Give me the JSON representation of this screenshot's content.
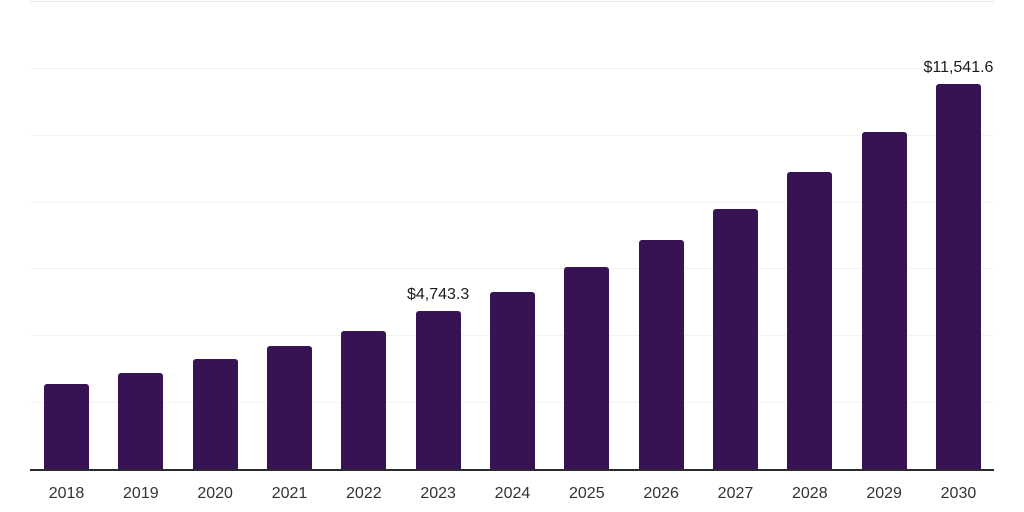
{
  "chart_data": {
    "type": "bar",
    "title": "",
    "xlabel": "",
    "ylabel": "",
    "categories": [
      "2018",
      "2019",
      "2020",
      "2021",
      "2022",
      "2023",
      "2024",
      "2025",
      "2026",
      "2027",
      "2028",
      "2029",
      "2030"
    ],
    "values": [
      2580,
      2900,
      3310,
      3710,
      4170,
      4743.3,
      5330,
      6080,
      6880,
      7810,
      8900,
      10100,
      11541.6
    ],
    "data_labels": {
      "2023": "$4,743.3",
      "2030": "$11,541.6"
    },
    "ylim": [
      0,
      14000
    ],
    "gridline_step": 2000,
    "grid": true,
    "legend": false,
    "colors": {
      "bar": "#371353",
      "gridline": "#f3f3f3",
      "gridline_top": "#e9e9e9",
      "axis_line": "#2b2b2b",
      "tick_label": "#333333",
      "data_label": "#1c1c1c",
      "background": "#ffffff"
    }
  }
}
